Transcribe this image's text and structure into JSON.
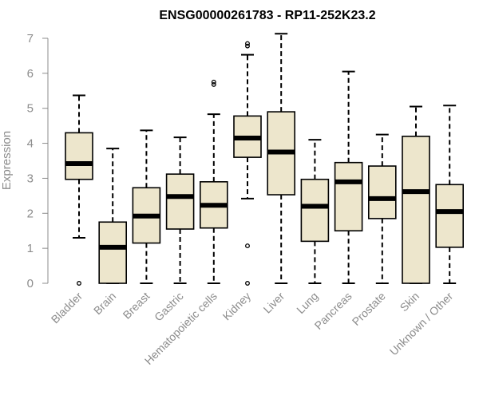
{
  "colors": {
    "box_fill": "#ede6cc",
    "box_stroke": "#000000",
    "axis": "#8c8c8c",
    "text": "#8c8c8c",
    "title": "#000000"
  },
  "chart_data": {
    "type": "boxplot",
    "title": "ENSG00000261783 - RP11-252K23.2",
    "xlabel": "",
    "ylabel": "Expression",
    "ylim": [
      0,
      7
    ],
    "yticks": [
      0,
      1,
      2,
      3,
      4,
      5,
      6,
      7
    ],
    "grid": false,
    "categories": [
      "Bladder",
      "Brain",
      "Breast",
      "Gastric",
      "Hematopoietic cells",
      "Kidney",
      "Liver",
      "Lung",
      "Pancreas",
      "Prostate",
      "Skin",
      "Unknown / Other"
    ],
    "boxes": [
      {
        "name": "Bladder",
        "whisker_low": 1.3,
        "q1": 2.97,
        "median": 3.42,
        "q3": 4.3,
        "whisker_high": 5.37,
        "outliers": [
          0.0
        ]
      },
      {
        "name": "Brain",
        "whisker_low": 0.0,
        "q1": 0.0,
        "median": 1.03,
        "q3": 1.75,
        "whisker_high": 3.85,
        "outliers": []
      },
      {
        "name": "Breast",
        "whisker_low": 0.0,
        "q1": 1.15,
        "median": 1.92,
        "q3": 2.73,
        "whisker_high": 4.37,
        "outliers": []
      },
      {
        "name": "Gastric",
        "whisker_low": 0.0,
        "q1": 1.55,
        "median": 2.48,
        "q3": 3.12,
        "whisker_high": 4.17,
        "outliers": []
      },
      {
        "name": "Hematopoietic cells",
        "whisker_low": 0.0,
        "q1": 1.58,
        "median": 2.23,
        "q3": 2.9,
        "whisker_high": 4.83,
        "outliers": [
          5.68,
          5.75
        ]
      },
      {
        "name": "Kidney",
        "whisker_low": 2.42,
        "q1": 3.6,
        "median": 4.15,
        "q3": 4.78,
        "whisker_high": 6.53,
        "outliers": [
          0.0,
          1.07,
          6.78,
          6.85
        ]
      },
      {
        "name": "Liver",
        "whisker_low": 0.0,
        "q1": 2.53,
        "median": 3.75,
        "q3": 4.9,
        "whisker_high": 7.13,
        "outliers": []
      },
      {
        "name": "Lung",
        "whisker_low": 0.0,
        "q1": 1.2,
        "median": 2.2,
        "q3": 2.97,
        "whisker_high": 4.1,
        "outliers": []
      },
      {
        "name": "Pancreas",
        "whisker_low": 0.0,
        "q1": 1.5,
        "median": 2.9,
        "q3": 3.45,
        "whisker_high": 6.05,
        "outliers": []
      },
      {
        "name": "Prostate",
        "whisker_low": 0.0,
        "q1": 1.85,
        "median": 2.42,
        "q3": 3.35,
        "whisker_high": 4.25,
        "outliers": []
      },
      {
        "name": "Skin",
        "whisker_low": 0.0,
        "q1": 0.0,
        "median": 2.62,
        "q3": 4.2,
        "whisker_high": 5.05,
        "outliers": []
      },
      {
        "name": "Unknown / Other",
        "whisker_low": 0.0,
        "q1": 1.03,
        "median": 2.05,
        "q3": 2.82,
        "whisker_high": 5.08,
        "outliers": []
      }
    ]
  }
}
